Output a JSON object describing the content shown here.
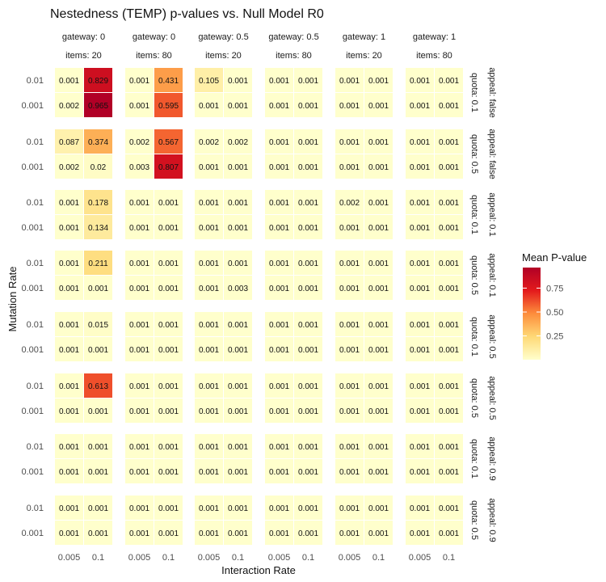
{
  "chart_data": {
    "type": "heatmap",
    "title": "Nestedness (TEMP) p-values vs. Null Model R0",
    "xlabel": "Interaction Rate",
    "ylabel": "Mutation Rate",
    "x_categories": [
      "0.005",
      "0.1"
    ],
    "y_categories": [
      "0.01",
      "0.001"
    ],
    "col_facets": [
      {
        "gateway": "gateway: 0",
        "items": "items: 20"
      },
      {
        "gateway": "gateway: 0",
        "items": "items: 80"
      },
      {
        "gateway": "gateway: 0.5",
        "items": "items: 20"
      },
      {
        "gateway": "gateway: 0.5",
        "items": "items: 80"
      },
      {
        "gateway": "gateway: 1",
        "items": "items: 20"
      },
      {
        "gateway": "gateway: 1",
        "items": "items: 80"
      }
    ],
    "row_facets": [
      {
        "quota": "quota: 0.1",
        "appeal": "appeal: false"
      },
      {
        "quota": "quota: 0.5",
        "appeal": "appeal: false"
      },
      {
        "quota": "quota: 0.1",
        "appeal": "appeal: 0.1"
      },
      {
        "quota": "quota: 0.5",
        "appeal": "appeal: 0.1"
      },
      {
        "quota": "quota: 0.1",
        "appeal": "appeal: 0.5"
      },
      {
        "quota": "quota: 0.5",
        "appeal": "appeal: 0.5"
      },
      {
        "quota": "quota: 0.1",
        "appeal": "appeal: 0.9"
      },
      {
        "quota": "quota: 0.5",
        "appeal": "appeal: 0.9"
      }
    ],
    "values": [
      [
        [
          [
            "0.001",
            "0.829"
          ],
          [
            "0.002",
            "0.965"
          ]
        ],
        [
          [
            "0.001",
            "0.431"
          ],
          [
            "0.001",
            "0.595"
          ]
        ],
        [
          [
            "0.105",
            "0.001"
          ],
          [
            "0.001",
            "0.001"
          ]
        ],
        [
          [
            "0.001",
            "0.001"
          ],
          [
            "0.001",
            "0.001"
          ]
        ],
        [
          [
            "0.001",
            "0.001"
          ],
          [
            "0.001",
            "0.001"
          ]
        ],
        [
          [
            "0.001",
            "0.001"
          ],
          [
            "0.001",
            "0.001"
          ]
        ]
      ],
      [
        [
          [
            "0.087",
            "0.374"
          ],
          [
            "0.002",
            "0.02"
          ]
        ],
        [
          [
            "0.002",
            "0.567"
          ],
          [
            "0.003",
            "0.807"
          ]
        ],
        [
          [
            "0.002",
            "0.002"
          ],
          [
            "0.001",
            "0.001"
          ]
        ],
        [
          [
            "0.001",
            "0.001"
          ],
          [
            "0.001",
            "0.001"
          ]
        ],
        [
          [
            "0.001",
            "0.001"
          ],
          [
            "0.001",
            "0.001"
          ]
        ],
        [
          [
            "0.001",
            "0.001"
          ],
          [
            "0.001",
            "0.001"
          ]
        ]
      ],
      [
        [
          [
            "0.001",
            "0.178"
          ],
          [
            "0.001",
            "0.134"
          ]
        ],
        [
          [
            "0.001",
            "0.001"
          ],
          [
            "0.001",
            "0.001"
          ]
        ],
        [
          [
            "0.001",
            "0.001"
          ],
          [
            "0.001",
            "0.001"
          ]
        ],
        [
          [
            "0.001",
            "0.001"
          ],
          [
            "0.001",
            "0.001"
          ]
        ],
        [
          [
            "0.002",
            "0.001"
          ],
          [
            "0.001",
            "0.001"
          ]
        ],
        [
          [
            "0.001",
            "0.001"
          ],
          [
            "0.001",
            "0.001"
          ]
        ]
      ],
      [
        [
          [
            "0.001",
            "0.211"
          ],
          [
            "0.001",
            "0.001"
          ]
        ],
        [
          [
            "0.001",
            "0.001"
          ],
          [
            "0.001",
            "0.001"
          ]
        ],
        [
          [
            "0.001",
            "0.001"
          ],
          [
            "0.001",
            "0.003"
          ]
        ],
        [
          [
            "0.001",
            "0.001"
          ],
          [
            "0.001",
            "0.001"
          ]
        ],
        [
          [
            "0.001",
            "0.001"
          ],
          [
            "0.001",
            "0.001"
          ]
        ],
        [
          [
            "0.001",
            "0.001"
          ],
          [
            "0.001",
            "0.001"
          ]
        ]
      ],
      [
        [
          [
            "0.001",
            "0.015"
          ],
          [
            "0.001",
            "0.001"
          ]
        ],
        [
          [
            "0.001",
            "0.001"
          ],
          [
            "0.001",
            "0.001"
          ]
        ],
        [
          [
            "0.001",
            "0.001"
          ],
          [
            "0.001",
            "0.001"
          ]
        ],
        [
          [
            "0.001",
            "0.001"
          ],
          [
            "0.001",
            "0.001"
          ]
        ],
        [
          [
            "0.001",
            "0.001"
          ],
          [
            "0.001",
            "0.001"
          ]
        ],
        [
          [
            "0.001",
            "0.001"
          ],
          [
            "0.001",
            "0.001"
          ]
        ]
      ],
      [
        [
          [
            "0.001",
            "0.613"
          ],
          [
            "0.001",
            "0.001"
          ]
        ],
        [
          [
            "0.001",
            "0.001"
          ],
          [
            "0.001",
            "0.001"
          ]
        ],
        [
          [
            "0.001",
            "0.001"
          ],
          [
            "0.001",
            "0.001"
          ]
        ],
        [
          [
            "0.001",
            "0.001"
          ],
          [
            "0.001",
            "0.001"
          ]
        ],
        [
          [
            "0.001",
            "0.001"
          ],
          [
            "0.001",
            "0.001"
          ]
        ],
        [
          [
            "0.001",
            "0.001"
          ],
          [
            "0.001",
            "0.001"
          ]
        ]
      ],
      [
        [
          [
            "0.001",
            "0.001"
          ],
          [
            "0.001",
            "0.001"
          ]
        ],
        [
          [
            "0.001",
            "0.001"
          ],
          [
            "0.001",
            "0.001"
          ]
        ],
        [
          [
            "0.001",
            "0.001"
          ],
          [
            "0.001",
            "0.001"
          ]
        ],
        [
          [
            "0.001",
            "0.001"
          ],
          [
            "0.001",
            "0.001"
          ]
        ],
        [
          [
            "0.001",
            "0.001"
          ],
          [
            "0.001",
            "0.001"
          ]
        ],
        [
          [
            "0.001",
            "0.001"
          ],
          [
            "0.001",
            "0.001"
          ]
        ]
      ],
      [
        [
          [
            "0.001",
            "0.001"
          ],
          [
            "0.001",
            "0.001"
          ]
        ],
        [
          [
            "0.001",
            "0.001"
          ],
          [
            "0.001",
            "0.001"
          ]
        ],
        [
          [
            "0.001",
            "0.001"
          ],
          [
            "0.001",
            "0.001"
          ]
        ],
        [
          [
            "0.001",
            "0.001"
          ],
          [
            "0.001",
            "0.001"
          ]
        ],
        [
          [
            "0.001",
            "0.001"
          ],
          [
            "0.001",
            "0.001"
          ]
        ],
        [
          [
            "0.001",
            "0.001"
          ],
          [
            "0.001",
            "0.001"
          ]
        ]
      ]
    ],
    "legend": {
      "title": "Mean P-value",
      "position": "right",
      "ticks": [
        "0.75",
        "0.50",
        "0.25"
      ],
      "range": [
        0.001,
        0.965
      ],
      "colors": [
        "#ffffcc",
        "#fed976",
        "#fd8d3c",
        "#e31a1c",
        "#b10026"
      ]
    },
    "grid": false
  }
}
